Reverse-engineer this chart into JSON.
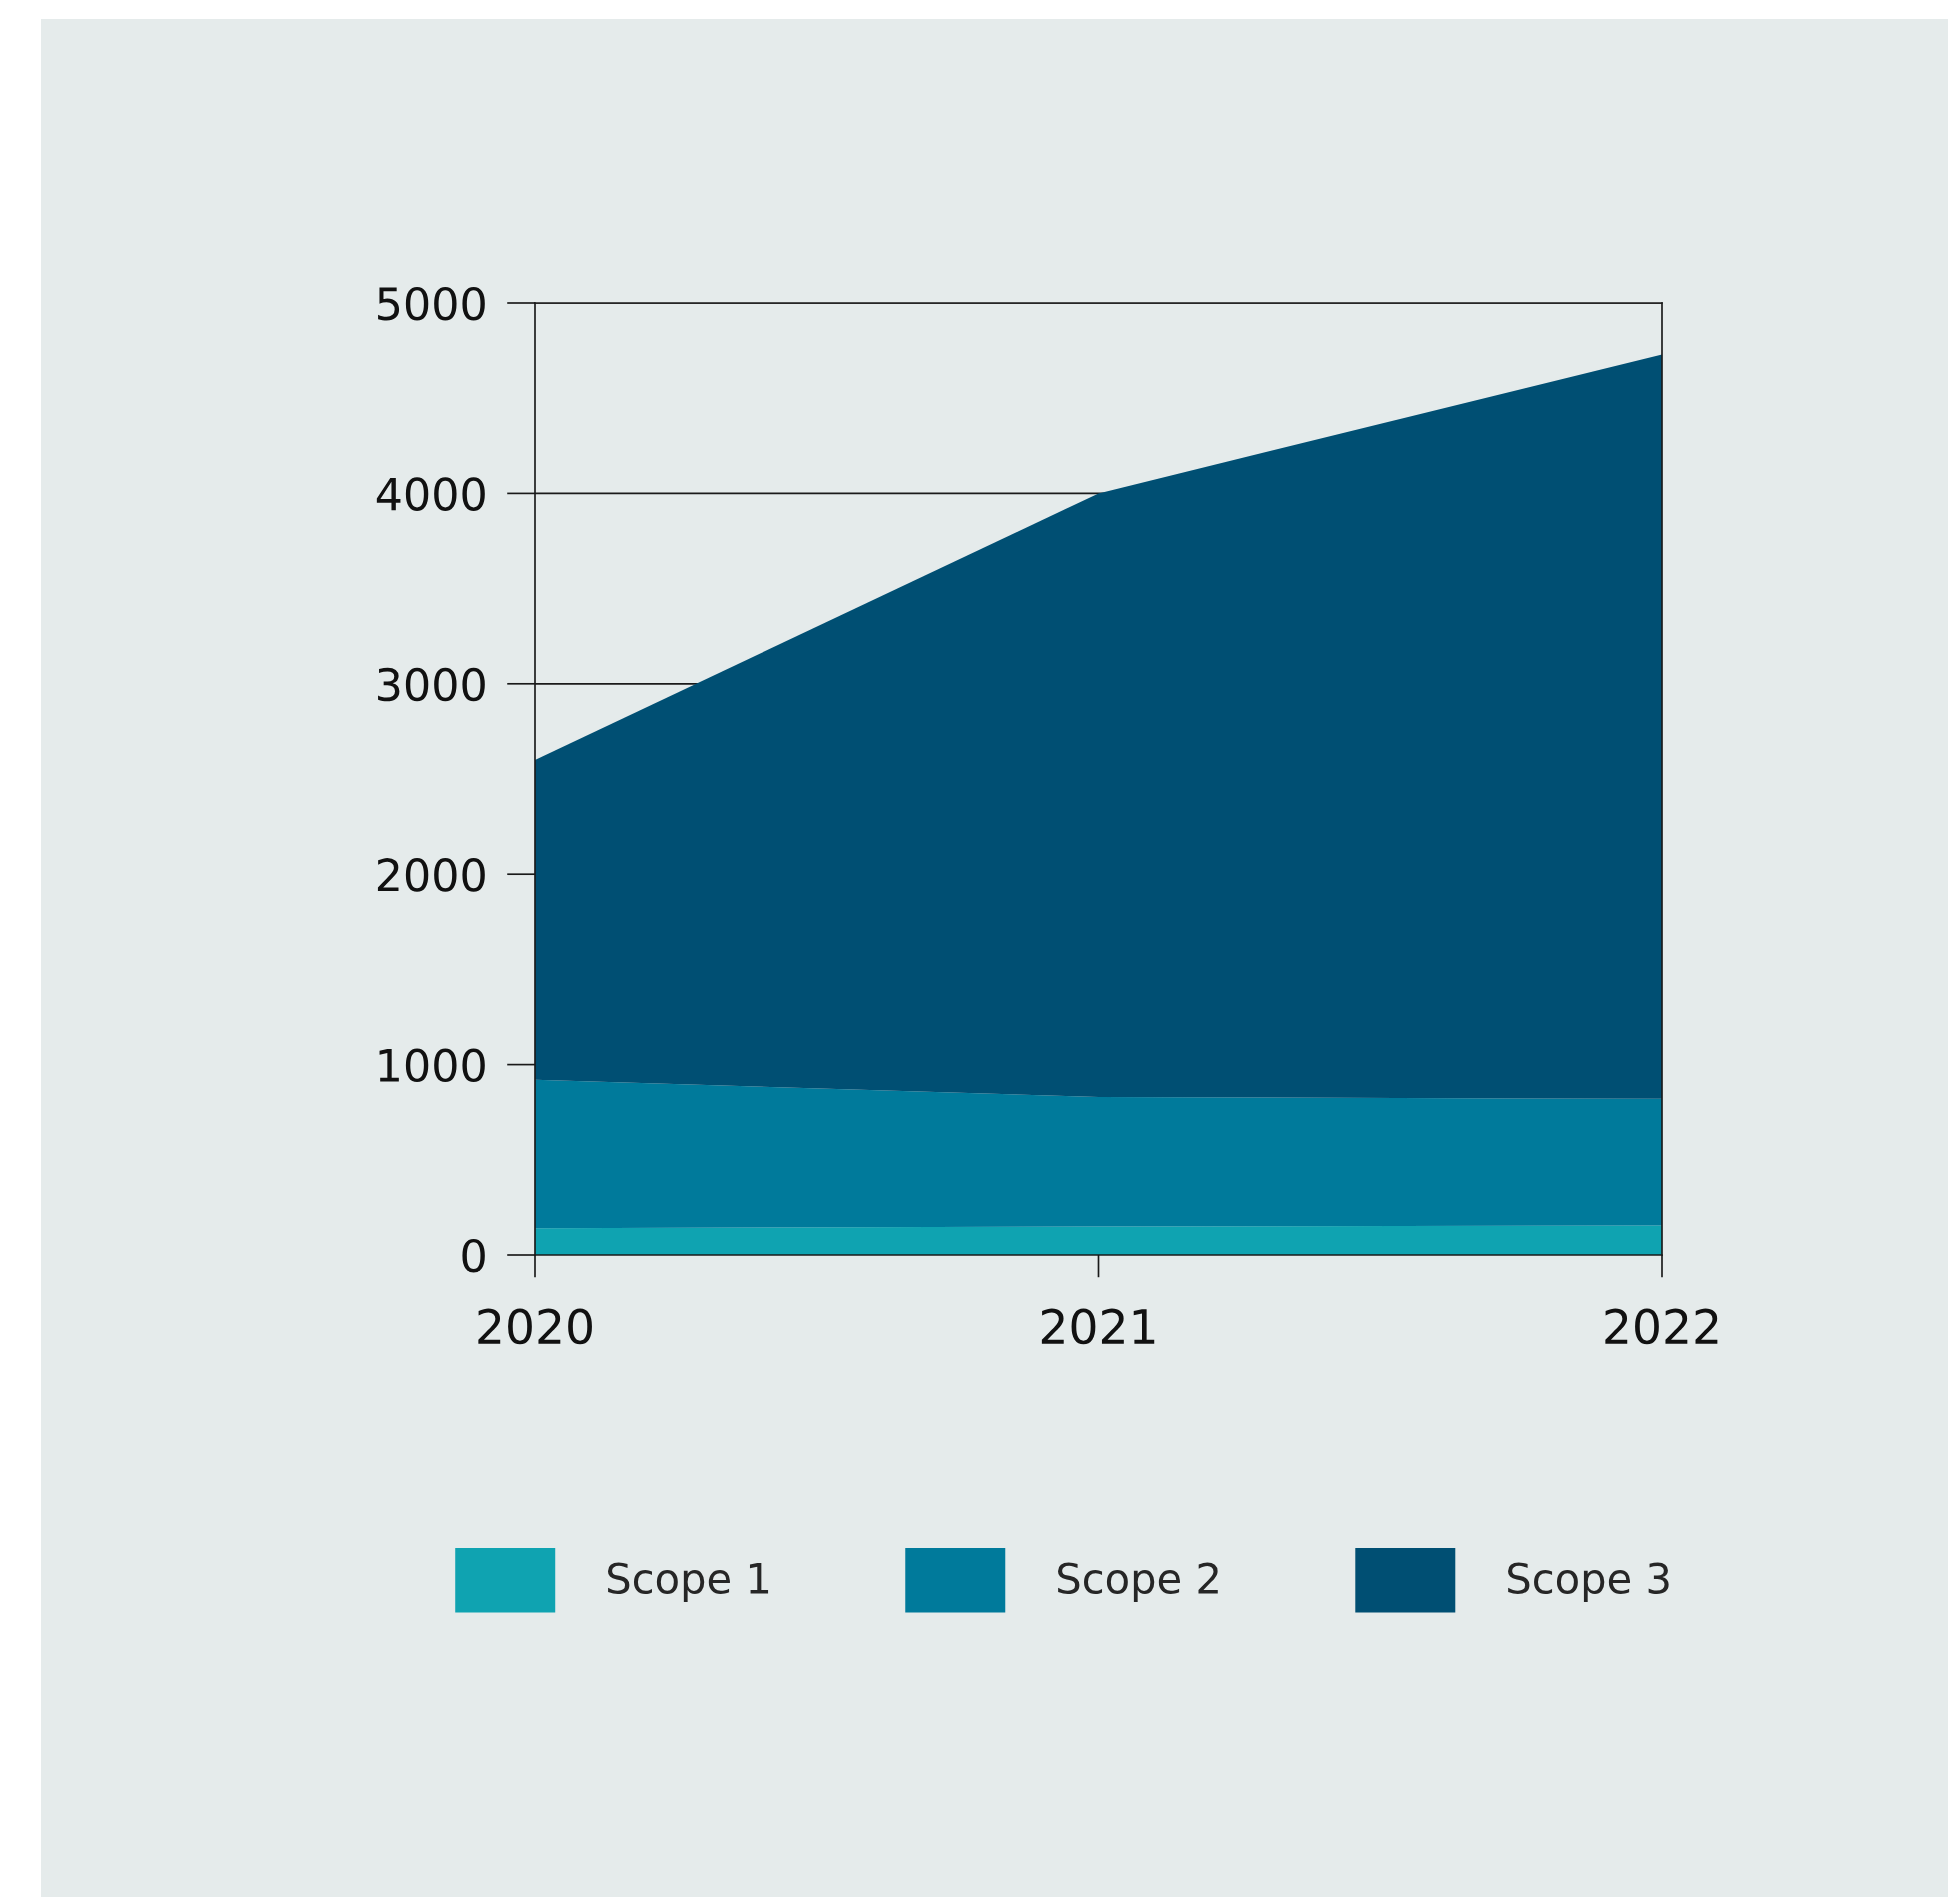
{
  "chart_data": {
    "type": "area",
    "stacked": true,
    "x": [
      2020,
      2021,
      2022
    ],
    "series": [
      {
        "name": "Scope 1",
        "color": "#0fa3b1",
        "values": [
          140,
          150,
          155
        ]
      },
      {
        "name": "Scope 2",
        "color": "#007a9b",
        "values": [
          780,
          680,
          665
        ]
      },
      {
        "name": "Scope 3",
        "color": "#004f73",
        "values": [
          1680,
          3170,
          3910
        ]
      }
    ],
    "xlim": [
      2020,
      2022
    ],
    "xticks": [
      2020,
      2021,
      2022
    ],
    "ylim": [
      0,
      5000
    ],
    "yticks": [
      0,
      1000,
      2000,
      3000,
      4000,
      5000
    ],
    "grid": "y",
    "legend": "bottom"
  }
}
